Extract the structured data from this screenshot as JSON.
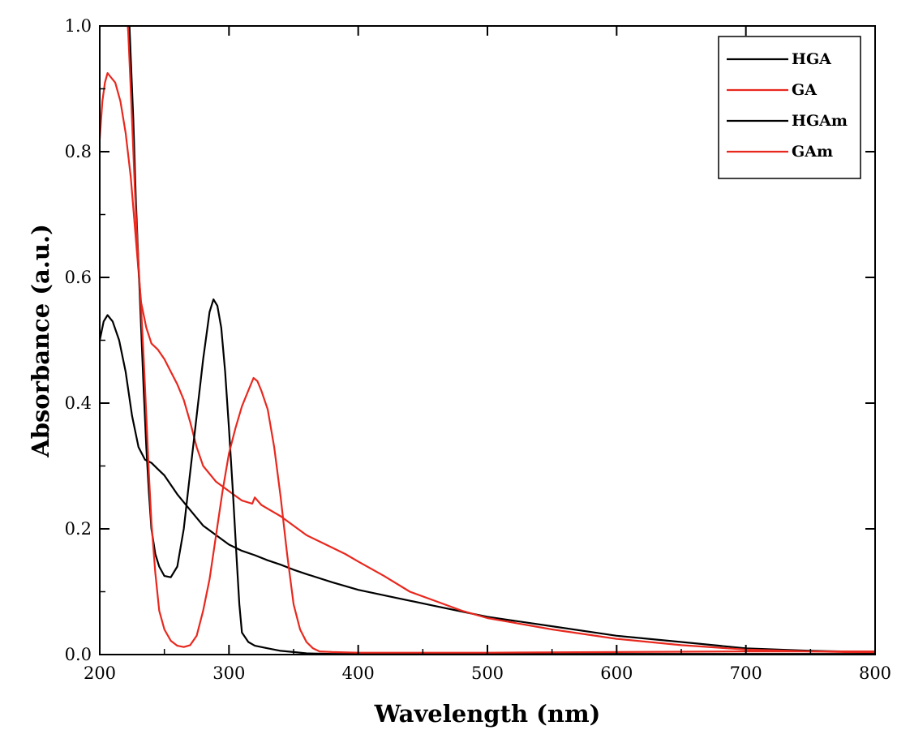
{
  "chart_data": {
    "type": "line",
    "xlabel": "Wavelength (nm)",
    "ylabel": "Absorbance (a.u.)",
    "xlim": [
      200,
      800
    ],
    "ylim": [
      0,
      1.0
    ],
    "x_ticks": [
      200,
      300,
      400,
      500,
      600,
      700,
      800
    ],
    "y_ticks": [
      "0.0",
      "0.2",
      "0.4",
      "0.6",
      "0.8",
      "1.0"
    ],
    "grid": false,
    "legend_position": "top-right",
    "series": [
      {
        "name": "HGA",
        "color": "#000000",
        "points": [
          [
            200,
            0.5
          ],
          [
            203,
            0.53
          ],
          [
            206,
            0.54
          ],
          [
            210,
            0.53
          ],
          [
            215,
            0.5
          ],
          [
            220,
            0.45
          ],
          [
            225,
            0.38
          ],
          [
            230,
            0.33
          ],
          [
            235,
            0.31
          ],
          [
            240,
            0.305
          ],
          [
            245,
            0.295
          ],
          [
            250,
            0.285
          ],
          [
            260,
            0.255
          ],
          [
            270,
            0.23
          ],
          [
            280,
            0.205
          ],
          [
            290,
            0.19
          ],
          [
            300,
            0.175
          ],
          [
            310,
            0.165
          ],
          [
            320,
            0.158
          ],
          [
            330,
            0.15
          ],
          [
            340,
            0.143
          ],
          [
            350,
            0.135
          ],
          [
            360,
            0.128
          ],
          [
            380,
            0.115
          ],
          [
            400,
            0.103
          ],
          [
            430,
            0.09
          ],
          [
            460,
            0.077
          ],
          [
            500,
            0.06
          ],
          [
            550,
            0.045
          ],
          [
            600,
            0.03
          ],
          [
            650,
            0.02
          ],
          [
            700,
            0.01
          ],
          [
            750,
            0.006
          ],
          [
            800,
            0.004
          ]
        ]
      },
      {
        "name": "GA",
        "color": "#e8281e",
        "points": [
          [
            200,
            0.82
          ],
          [
            202,
            0.88
          ],
          [
            204,
            0.91
          ],
          [
            206,
            0.925
          ],
          [
            208,
            0.92
          ],
          [
            212,
            0.91
          ],
          [
            216,
            0.88
          ],
          [
            220,
            0.83
          ],
          [
            224,
            0.76
          ],
          [
            228,
            0.66
          ],
          [
            232,
            0.56
          ],
          [
            236,
            0.52
          ],
          [
            240,
            0.495
          ],
          [
            245,
            0.485
          ],
          [
            250,
            0.47
          ],
          [
            255,
            0.45
          ],
          [
            260,
            0.43
          ],
          [
            265,
            0.405
          ],
          [
            270,
            0.37
          ],
          [
            275,
            0.33
          ],
          [
            280,
            0.3
          ],
          [
            290,
            0.275
          ],
          [
            300,
            0.26
          ],
          [
            310,
            0.245
          ],
          [
            318,
            0.24
          ],
          [
            320,
            0.25
          ],
          [
            325,
            0.238
          ],
          [
            330,
            0.232
          ],
          [
            340,
            0.22
          ],
          [
            350,
            0.205
          ],
          [
            360,
            0.19
          ],
          [
            375,
            0.175
          ],
          [
            390,
            0.16
          ],
          [
            400,
            0.148
          ],
          [
            420,
            0.125
          ],
          [
            440,
            0.1
          ],
          [
            460,
            0.085
          ],
          [
            480,
            0.07
          ],
          [
            500,
            0.058
          ],
          [
            550,
            0.04
          ],
          [
            600,
            0.025
          ],
          [
            650,
            0.015
          ],
          [
            700,
            0.008
          ],
          [
            750,
            0.005
          ],
          [
            800,
            0.003
          ]
        ]
      },
      {
        "name": "HGAm",
        "color": "#000000",
        "points": [
          [
            222,
            1.05
          ],
          [
            224,
            0.95
          ],
          [
            226,
            0.85
          ],
          [
            228,
            0.72
          ],
          [
            230,
            0.62
          ],
          [
            232,
            0.52
          ],
          [
            234,
            0.42
          ],
          [
            236,
            0.33
          ],
          [
            238,
            0.26
          ],
          [
            240,
            0.2
          ],
          [
            243,
            0.16
          ],
          [
            246,
            0.14
          ],
          [
            250,
            0.125
          ],
          [
            255,
            0.123
          ],
          [
            260,
            0.14
          ],
          [
            265,
            0.2
          ],
          [
            270,
            0.29
          ],
          [
            275,
            0.38
          ],
          [
            280,
            0.47
          ],
          [
            285,
            0.545
          ],
          [
            288,
            0.565
          ],
          [
            291,
            0.555
          ],
          [
            294,
            0.52
          ],
          [
            297,
            0.45
          ],
          [
            300,
            0.36
          ],
          [
            303,
            0.26
          ],
          [
            306,
            0.15
          ],
          [
            308,
            0.08
          ],
          [
            310,
            0.035
          ],
          [
            315,
            0.02
          ],
          [
            320,
            0.014
          ],
          [
            330,
            0.01
          ],
          [
            340,
            0.006
          ],
          [
            350,
            0.004
          ],
          [
            360,
            0.002
          ],
          [
            380,
            0.001
          ],
          [
            400,
            0.001
          ],
          [
            500,
            0.001
          ],
          [
            600,
            0.001
          ],
          [
            700,
            0.001
          ],
          [
            800,
            0.001
          ]
        ]
      },
      {
        "name": "GAm",
        "color": "#e8281e",
        "points": [
          [
            220,
            1.05
          ],
          [
            222,
            0.99
          ],
          [
            224,
            0.9
          ],
          [
            226,
            0.8
          ],
          [
            228,
            0.7
          ],
          [
            230,
            0.62
          ],
          [
            232,
            0.55
          ],
          [
            234,
            0.47
          ],
          [
            236,
            0.38
          ],
          [
            238,
            0.29
          ],
          [
            240,
            0.21
          ],
          [
            243,
            0.13
          ],
          [
            246,
            0.07
          ],
          [
            250,
            0.04
          ],
          [
            255,
            0.022
          ],
          [
            260,
            0.014
          ],
          [
            265,
            0.012
          ],
          [
            270,
            0.015
          ],
          [
            275,
            0.03
          ],
          [
            280,
            0.07
          ],
          [
            285,
            0.12
          ],
          [
            290,
            0.19
          ],
          [
            295,
            0.26
          ],
          [
            300,
            0.32
          ],
          [
            305,
            0.36
          ],
          [
            310,
            0.395
          ],
          [
            315,
            0.42
          ],
          [
            319,
            0.44
          ],
          [
            322,
            0.435
          ],
          [
            325,
            0.42
          ],
          [
            330,
            0.39
          ],
          [
            335,
            0.33
          ],
          [
            340,
            0.25
          ],
          [
            345,
            0.16
          ],
          [
            350,
            0.08
          ],
          [
            355,
            0.04
          ],
          [
            360,
            0.02
          ],
          [
            365,
            0.01
          ],
          [
            370,
            0.005
          ],
          [
            380,
            0.004
          ],
          [
            400,
            0.003
          ],
          [
            500,
            0.003
          ],
          [
            600,
            0.004
          ],
          [
            700,
            0.005
          ],
          [
            800,
            0.005
          ]
        ]
      }
    ]
  }
}
